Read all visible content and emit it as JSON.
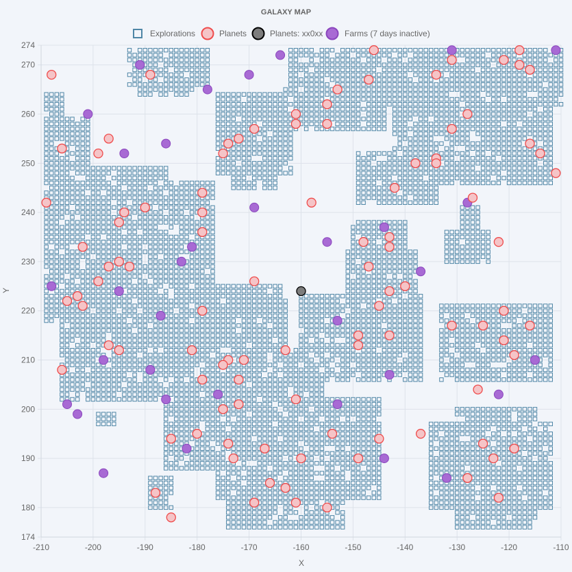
{
  "chart_data": {
    "type": "scatter",
    "title": "GALAXY MAP",
    "xlabel": "X",
    "ylabel": "Y",
    "xlim": [
      -210,
      -110
    ],
    "ylim": [
      174,
      274
    ],
    "xticks": [
      -210,
      -200,
      -190,
      -180,
      -170,
      -160,
      -150,
      -140,
      -130,
      -120,
      -110
    ],
    "yticks": [
      174,
      180,
      190,
      200,
      210,
      220,
      230,
      240,
      250,
      260,
      270,
      274
    ],
    "grid": true,
    "legend_position": "top-center",
    "colors": {
      "explorations_stroke": "#4f86a6",
      "planets_fill": "#f5c4c7",
      "planets_stroke": "#ef4b4b",
      "xx0xx_fill": "#7d7d7d",
      "xx0xx_stroke": "#000000",
      "farms_fill": "#a86ad4",
      "farms_stroke": "#8a45bd",
      "grid": "#dde2ea",
      "background": "#f2f5fa"
    },
    "explorations_regions": [
      {
        "xmin": -206,
        "xmax": -201,
        "ymin": 202,
        "ymax": 259
      },
      {
        "xmin": -209,
        "xmax": -206,
        "ymin": 218,
        "ymax": 264
      },
      {
        "xmin": -200,
        "xmax": -196,
        "ymin": 202,
        "ymax": 249
      },
      {
        "xmin": -196,
        "xmax": -186,
        "ymin": 208,
        "ymax": 249
      },
      {
        "xmin": -189,
        "xmax": -177,
        "ymin": 225,
        "ymax": 246
      },
      {
        "xmin": -193,
        "xmax": -178,
        "ymin": 266,
        "ymax": 273
      },
      {
        "xmin": -191,
        "xmax": -181,
        "ymin": 264,
        "ymax": 268
      },
      {
        "xmin": -176,
        "xmax": -162,
        "ymin": 248,
        "ymax": 264
      },
      {
        "xmin": -173,
        "xmax": -165,
        "ymin": 245,
        "ymax": 250
      },
      {
        "xmin": -162,
        "xmax": -144,
        "ymin": 257,
        "ymax": 273
      },
      {
        "xmin": -163,
        "xmax": -156,
        "ymin": 257,
        "ymax": 265
      },
      {
        "xmin": -147,
        "xmax": -110,
        "ymin": 262,
        "ymax": 273
      },
      {
        "xmin": -142,
        "xmax": -112,
        "ymin": 246,
        "ymax": 265
      },
      {
        "xmin": -149,
        "xmax": -134,
        "ymin": 242,
        "ymax": 252
      },
      {
        "xmin": -150,
        "xmax": -140,
        "ymin": 218,
        "ymax": 238
      },
      {
        "xmin": -151,
        "xmax": -138,
        "ymin": 222,
        "ymax": 232
      },
      {
        "xmin": -132,
        "xmax": -124,
        "ymin": 230,
        "ymax": 236
      },
      {
        "xmin": -129,
        "xmax": -126,
        "ymin": 236,
        "ymax": 241
      },
      {
        "xmin": -202,
        "xmax": -163,
        "ymin": 212,
        "ymax": 222
      },
      {
        "xmin": -184,
        "xmax": -164,
        "ymin": 220,
        "ymax": 225
      },
      {
        "xmin": -196,
        "xmax": -156,
        "ymin": 202,
        "ymax": 212
      },
      {
        "xmin": -186,
        "xmax": -156,
        "ymin": 188,
        "ymax": 202
      },
      {
        "xmin": -176,
        "xmax": -145,
        "ymin": 182,
        "ymax": 194
      },
      {
        "xmin": -160,
        "xmax": -137,
        "ymin": 206,
        "ymax": 223
      },
      {
        "xmin": -157,
        "xmax": -145,
        "ymin": 188,
        "ymax": 202
      },
      {
        "xmin": -174,
        "xmax": -152,
        "ymin": 176,
        "ymax": 184
      },
      {
        "xmin": -133,
        "xmax": -112,
        "ymin": 206,
        "ymax": 221
      },
      {
        "xmin": -135,
        "xmax": -112,
        "ymin": 180,
        "ymax": 197
      },
      {
        "xmin": -130,
        "xmax": -115,
        "ymin": 176,
        "ymax": 200
      },
      {
        "xmin": -189,
        "xmax": -185,
        "ymin": 180,
        "ymax": 186
      },
      {
        "xmin": -186,
        "xmax": -183,
        "ymin": 194,
        "ymax": 201
      },
      {
        "xmin": -199,
        "xmax": -196,
        "ymin": 197,
        "ymax": 199
      }
    ],
    "series": [
      {
        "name": "Explorations",
        "marker": "square"
      },
      {
        "name": "Planets",
        "marker": "circle",
        "points": [
          [
            -208,
            268
          ],
          [
            -189,
            268
          ],
          [
            -146,
            273
          ],
          [
            -131,
            271
          ],
          [
            -121,
            271
          ],
          [
            -118,
            273
          ],
          [
            -118,
            270
          ],
          [
            -116,
            269
          ],
          [
            -147,
            267
          ],
          [
            -134,
            268
          ],
          [
            -153,
            265
          ],
          [
            -155,
            262
          ],
          [
            -161,
            260
          ],
          [
            -161,
            258
          ],
          [
            -155,
            258
          ],
          [
            -128,
            260
          ],
          [
            -131,
            257
          ],
          [
            -169,
            257
          ],
          [
            -172,
            255
          ],
          [
            -174,
            254
          ],
          [
            -175,
            252
          ],
          [
            -197,
            255
          ],
          [
            -199,
            252
          ],
          [
            -206,
            253
          ],
          [
            -134,
            251
          ],
          [
            -138,
            250
          ],
          [
            -134,
            250
          ],
          [
            -116,
            254
          ],
          [
            -114,
            252
          ],
          [
            -111,
            248
          ],
          [
            -142,
            245
          ],
          [
            -127,
            243
          ],
          [
            -158,
            242
          ],
          [
            -209,
            242
          ],
          [
            -190,
            241
          ],
          [
            -194,
            240
          ],
          [
            -195,
            238
          ],
          [
            -179,
            244
          ],
          [
            -179,
            240
          ],
          [
            -179,
            236
          ],
          [
            -148,
            234
          ],
          [
            -143,
            235
          ],
          [
            -143,
            233
          ],
          [
            -122,
            234
          ],
          [
            -202,
            233
          ],
          [
            -197,
            229
          ],
          [
            -195,
            230
          ],
          [
            -193,
            229
          ],
          [
            -199,
            226
          ],
          [
            -169,
            226
          ],
          [
            -147,
            229
          ],
          [
            -143,
            224
          ],
          [
            -140,
            225
          ],
          [
            -145,
            221
          ],
          [
            -203,
            223
          ],
          [
            -205,
            222
          ],
          [
            -202,
            221
          ],
          [
            -179,
            220
          ],
          [
            -197,
            213
          ],
          [
            -195,
            212
          ],
          [
            -181,
            212
          ],
          [
            -171,
            210
          ],
          [
            -174,
            210
          ],
          [
            -175,
            209
          ],
          [
            -163,
            212
          ],
          [
            -206,
            208
          ],
          [
            -179,
            206
          ],
          [
            -172,
            206
          ],
          [
            -161,
            202
          ],
          [
            -172,
            201
          ],
          [
            -175,
            200
          ],
          [
            -149,
            215
          ],
          [
            -149,
            213
          ],
          [
            -143,
            215
          ],
          [
            -131,
            217
          ],
          [
            -125,
            217
          ],
          [
            -121,
            220
          ],
          [
            -121,
            214
          ],
          [
            -116,
            217
          ],
          [
            -119,
            211
          ],
          [
            -126,
            204
          ],
          [
            -185,
            194
          ],
          [
            -180,
            195
          ],
          [
            -174,
            193
          ],
          [
            -167,
            192
          ],
          [
            -173,
            190
          ],
          [
            -160,
            190
          ],
          [
            -154,
            195
          ],
          [
            -149,
            190
          ],
          [
            -145,
            194
          ],
          [
            -137,
            195
          ],
          [
            -125,
            193
          ],
          [
            -123,
            190
          ],
          [
            -119,
            192
          ],
          [
            -188,
            183
          ],
          [
            -185,
            178
          ],
          [
            -169,
            181
          ],
          [
            -166,
            185
          ],
          [
            -163,
            184
          ],
          [
            -161,
            181
          ],
          [
            -155,
            180
          ],
          [
            -128,
            186
          ],
          [
            -122,
            182
          ]
        ]
      },
      {
        "name": "Planets: xx0xx",
        "marker": "circle",
        "points": [
          [
            -160,
            224
          ]
        ]
      },
      {
        "name": "Farms (7 days inactive)",
        "marker": "circle",
        "points": [
          [
            -191,
            270
          ],
          [
            -164,
            272
          ],
          [
            -170,
            268
          ],
          [
            -178,
            265
          ],
          [
            -131,
            273
          ],
          [
            -111,
            273
          ],
          [
            -201,
            260
          ],
          [
            -186,
            254
          ],
          [
            -194,
            252
          ],
          [
            -169,
            241
          ],
          [
            -128,
            242
          ],
          [
            -144,
            237
          ],
          [
            -155,
            234
          ],
          [
            -181,
            233
          ],
          [
            -183,
            230
          ],
          [
            -137,
            228
          ],
          [
            -208,
            225
          ],
          [
            -195,
            224
          ],
          [
            -187,
            219
          ],
          [
            -153,
            218
          ],
          [
            -198,
            210
          ],
          [
            -189,
            208
          ],
          [
            -143,
            207
          ],
          [
            -115,
            210
          ],
          [
            -176,
            203
          ],
          [
            -186,
            202
          ],
          [
            -205,
            201
          ],
          [
            -203,
            199
          ],
          [
            -153,
            201
          ],
          [
            -122,
            203
          ],
          [
            -182,
            192
          ],
          [
            -144,
            190
          ],
          [
            -198,
            187
          ],
          [
            -132,
            186
          ]
        ]
      }
    ]
  }
}
